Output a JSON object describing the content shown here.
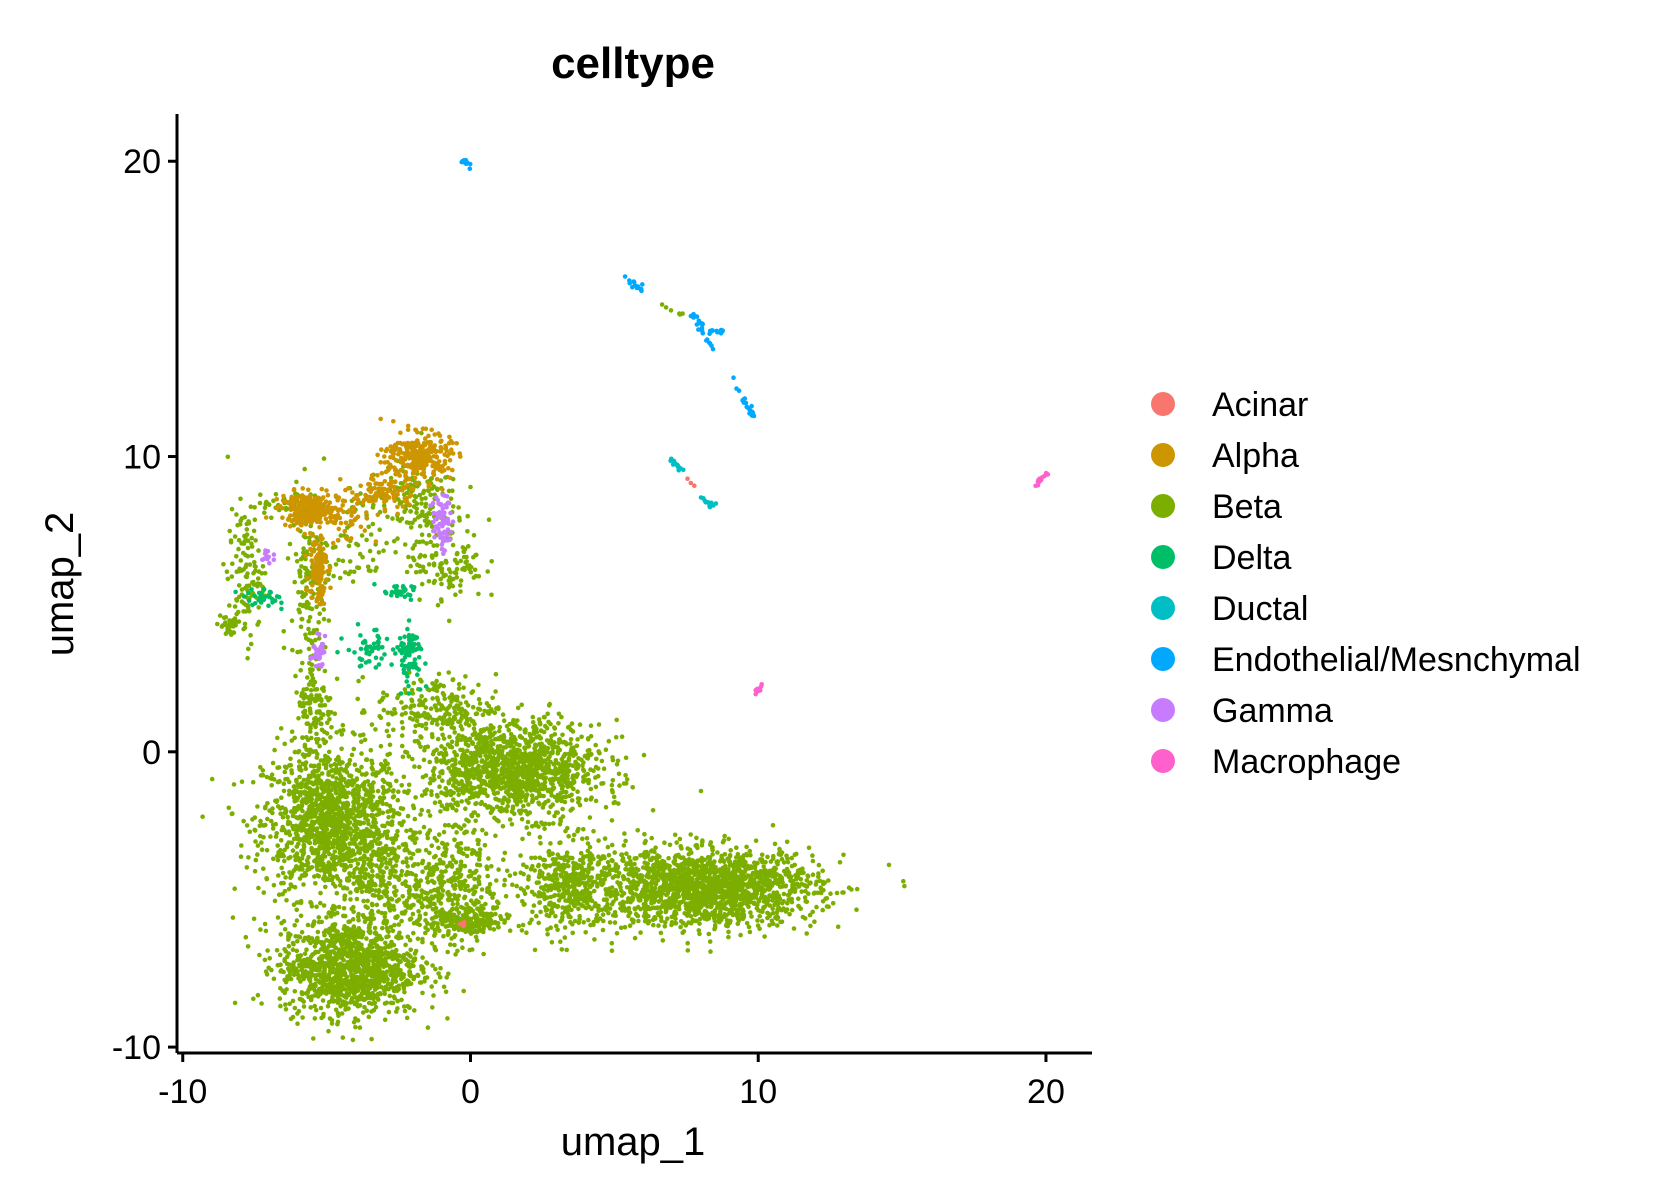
{
  "chart_data": {
    "type": "scatter",
    "title": "celltype",
    "xlabel": "umap_1",
    "ylabel": "umap_2",
    "xlim": [
      -10.2,
      21.6
    ],
    "ylim": [
      -10.2,
      21.6
    ],
    "xticks": [
      -10,
      0,
      10,
      20
    ],
    "yticks": [
      -10,
      0,
      10,
      20
    ],
    "xtick_labels": [
      "-10",
      "0",
      "10",
      "20"
    ],
    "ytick_labels": [
      "-10",
      "0",
      "10",
      "20"
    ],
    "grid": false,
    "legend_position": "right",
    "series": [
      {
        "name": "Acinar",
        "color": "#F8766D"
      },
      {
        "name": "Alpha",
        "color": "#CD9600"
      },
      {
        "name": "Beta",
        "color": "#7CAE00"
      },
      {
        "name": "Delta",
        "color": "#00BE67"
      },
      {
        "name": "Ductal",
        "color": "#00BFC4"
      },
      {
        "name": "Endothelial/Mesnchymal",
        "color": "#00A9FF"
      },
      {
        "name": "Gamma",
        "color": "#C77CFF"
      },
      {
        "name": "Macrophage",
        "color": "#FF61CC"
      }
    ],
    "clusters": [
      {
        "series": "Beta",
        "cx": -4.8,
        "cy": -2.4,
        "sx": 1.5,
        "sy": 1.6,
        "n": 1400
      },
      {
        "series": "Beta",
        "cx": -4.2,
        "cy": -7.3,
        "sx": 1.5,
        "sy": 1.0,
        "n": 1200
      },
      {
        "series": "Beta",
        "cx": 1.5,
        "cy": -0.6,
        "sx": 1.9,
        "sy": 1.0,
        "n": 1300
      },
      {
        "series": "Beta",
        "cx": 8.2,
        "cy": -4.6,
        "sx": 2.4,
        "sy": 0.8,
        "n": 1700
      },
      {
        "series": "Beta",
        "cx": 3.5,
        "cy": -4.5,
        "sx": 1.2,
        "sy": 1.0,
        "n": 450
      },
      {
        "series": "Beta",
        "cx": -0.8,
        "cy": -4.5,
        "sx": 1.0,
        "sy": 1.3,
        "n": 400
      },
      {
        "series": "Beta",
        "cx": -3.0,
        "cy": -4.5,
        "sx": 0.8,
        "sy": 1.1,
        "n": 180
      },
      {
        "series": "Beta",
        "cx": 0.0,
        "cy": -5.8,
        "sx": 0.8,
        "sy": 0.3,
        "n": 150
      },
      {
        "series": "Beta",
        "cx": -1.2,
        "cy": 1.5,
        "sx": 1.3,
        "sy": 0.7,
        "n": 200
      },
      {
        "series": "Beta",
        "cx": -5.4,
        "cy": 1.5,
        "sx": 0.4,
        "sy": 1.2,
        "n": 120
      },
      {
        "series": "Beta",
        "cx": -5.6,
        "cy": 6.0,
        "sx": 0.4,
        "sy": 1.8,
        "n": 160
      },
      {
        "series": "Beta",
        "cx": -7.8,
        "cy": 6.0,
        "sx": 0.4,
        "sy": 1.4,
        "n": 120
      },
      {
        "series": "Beta",
        "cx": -8.4,
        "cy": 4.3,
        "sx": 0.25,
        "sy": 0.3,
        "n": 30
      },
      {
        "series": "Beta",
        "cx": -2.0,
        "cy": 8.5,
        "sx": 1.0,
        "sy": 0.8,
        "n": 150
      },
      {
        "series": "Beta",
        "cx": -0.8,
        "cy": 6.4,
        "sx": 0.8,
        "sy": 0.8,
        "n": 120
      },
      {
        "series": "Beta",
        "cx": -3.8,
        "cy": 7.2,
        "sx": 0.9,
        "sy": 1.0,
        "n": 60
      },
      {
        "series": "Beta",
        "cx": -6.5,
        "cy": 8.4,
        "sx": 0.7,
        "sy": 0.3,
        "n": 40
      },
      {
        "series": "Alpha",
        "cx": -5.6,
        "cy": 8.2,
        "sx": 0.6,
        "sy": 0.35,
        "n": 220
      },
      {
        "series": "Alpha",
        "cx": -5.3,
        "cy": 6.3,
        "sx": 0.2,
        "sy": 0.8,
        "n": 110
      },
      {
        "series": "Alpha",
        "cx": -1.8,
        "cy": 10.0,
        "sx": 0.7,
        "sy": 0.5,
        "n": 260
      },
      {
        "series": "Alpha",
        "cx": -3.0,
        "cy": 8.8,
        "sx": 0.7,
        "sy": 0.4,
        "n": 90
      },
      {
        "series": "Alpha",
        "cx": -4.3,
        "cy": 8.0,
        "sx": 0.7,
        "sy": 0.6,
        "n": 60
      },
      {
        "series": "Gamma",
        "cx": -1.0,
        "cy": 7.8,
        "sx": 0.2,
        "sy": 0.6,
        "n": 70
      },
      {
        "series": "Gamma",
        "cx": -5.3,
        "cy": 3.4,
        "sx": 0.15,
        "sy": 0.3,
        "n": 30
      },
      {
        "series": "Gamma",
        "cx": -7.1,
        "cy": 6.6,
        "sx": 0.15,
        "sy": 0.2,
        "n": 12
      },
      {
        "series": "Delta",
        "cx": -2.1,
        "cy": 3.3,
        "sx": 0.3,
        "sy": 0.6,
        "n": 80
      },
      {
        "series": "Delta",
        "cx": -3.5,
        "cy": 3.5,
        "sx": 0.5,
        "sy": 0.4,
        "n": 50
      },
      {
        "series": "Delta",
        "cx": -7.2,
        "cy": 5.2,
        "sx": 0.5,
        "sy": 0.2,
        "n": 30
      },
      {
        "series": "Delta",
        "cx": -2.5,
        "cy": 5.4,
        "sx": 0.5,
        "sy": 0.15,
        "n": 30
      },
      {
        "series": "Acinar",
        "cx": -0.2,
        "cy": -5.8,
        "sx": 0.1,
        "sy": 0.1,
        "n": 4
      }
    ],
    "segments": [
      {
        "series": "Endothelial/Mesnchymal",
        "points": [
          [
            -0.3,
            20.1
          ],
          [
            0.0,
            19.8
          ]
        ],
        "n": 14
      },
      {
        "series": "Endothelial/Mesnchymal",
        "points": [
          [
            5.4,
            16.0
          ],
          [
            6.1,
            15.6
          ]
        ],
        "n": 14
      },
      {
        "series": "Endothelial/Mesnchymal",
        "points": [
          [
            7.6,
            14.9
          ],
          [
            8.3,
            14.3
          ],
          [
            8.8,
            14.2
          ]
        ],
        "n": 24
      },
      {
        "series": "Endothelial/Mesnchymal",
        "points": [
          [
            7.9,
            14.5
          ],
          [
            8.4,
            13.6
          ]
        ],
        "n": 12
      },
      {
        "series": "Endothelial/Mesnchymal",
        "points": [
          [
            9.1,
            12.6
          ],
          [
            9.6,
            11.8
          ],
          [
            9.8,
            11.4
          ]
        ],
        "n": 22
      },
      {
        "series": "Beta",
        "points": [
          [
            6.5,
            15.2
          ],
          [
            7.4,
            14.8
          ]
        ],
        "n": 6
      },
      {
        "series": "Ductal",
        "points": [
          [
            7.0,
            9.9
          ],
          [
            7.4,
            9.5
          ]
        ],
        "n": 16
      },
      {
        "series": "Ductal",
        "points": [
          [
            8.0,
            8.6
          ],
          [
            8.5,
            8.3
          ]
        ],
        "n": 12
      },
      {
        "series": "Acinar",
        "points": [
          [
            7.5,
            9.3
          ],
          [
            7.8,
            9.0
          ]
        ],
        "n": 3
      },
      {
        "series": "Macrophage",
        "points": [
          [
            19.6,
            9.0
          ],
          [
            20.1,
            9.4
          ]
        ],
        "n": 16
      },
      {
        "series": "Macrophage",
        "points": [
          [
            9.8,
            1.9
          ],
          [
            10.1,
            2.2
          ]
        ],
        "n": 10
      }
    ]
  }
}
